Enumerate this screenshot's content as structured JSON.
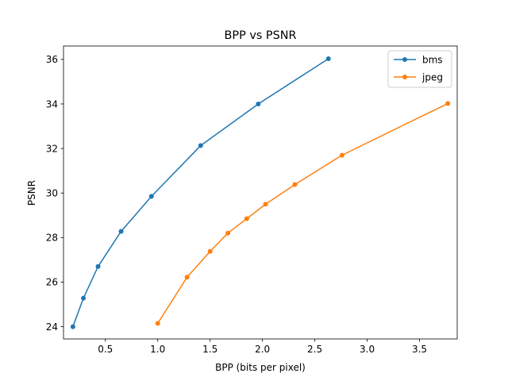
{
  "chart_data": {
    "type": "line",
    "title": "BPP vs PSNR",
    "xlabel": "BPP (bits per pixel)",
    "ylabel": "PSNR",
    "xlim": [
      0.1,
      3.86
    ],
    "ylim": [
      23.45,
      36.6
    ],
    "xticks": [
      0.5,
      1.0,
      1.5,
      2.0,
      2.5,
      3.0,
      3.5
    ],
    "xtick_labels": [
      "0.5",
      "1.0",
      "1.5",
      "2.0",
      "2.5",
      "3.0",
      "3.5"
    ],
    "yticks": [
      24,
      26,
      28,
      30,
      32,
      34,
      36
    ],
    "ytick_labels": [
      "24",
      "26",
      "28",
      "30",
      "32",
      "34",
      "36"
    ],
    "grid": false,
    "legend_position": "top-right",
    "series": [
      {
        "name": "bms",
        "color": "#1f77b4",
        "x": [
          0.19,
          0.29,
          0.43,
          0.65,
          0.94,
          1.41,
          1.96,
          2.63
        ],
        "y": [
          24.0,
          25.28,
          26.7,
          28.28,
          29.85,
          32.13,
          34.0,
          36.03
        ]
      },
      {
        "name": "jpeg",
        "color": "#ff7f0e",
        "x": [
          1.0,
          1.28,
          1.5,
          1.67,
          1.85,
          2.03,
          2.31,
          2.76,
          3.77
        ],
        "y": [
          24.15,
          26.22,
          27.38,
          28.2,
          28.85,
          29.5,
          30.38,
          31.7,
          34.02
        ]
      }
    ]
  }
}
